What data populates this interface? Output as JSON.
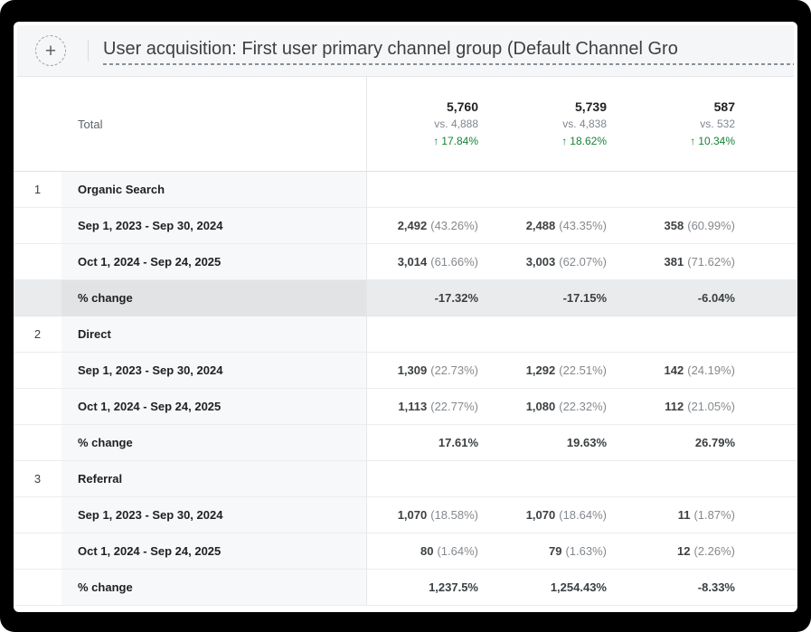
{
  "colors": {
    "positive_green": "#188038",
    "highlight_row": "#e9ebec",
    "label_column_bg": "#f7f8f9"
  },
  "header": {
    "add_button_label": "+",
    "title": "User acquisition: First user primary channel group (Default Channel Gro"
  },
  "table": {
    "total_row": {
      "label": "Total",
      "metrics": [
        {
          "value": "5,760",
          "vs": "vs. 4,888",
          "arrow": "↑",
          "change": "17.84%"
        },
        {
          "value": "5,739",
          "vs": "vs. 4,838",
          "arrow": "↑",
          "change": "18.62%"
        },
        {
          "value": "587",
          "vs": "vs. 532",
          "arrow": "↑",
          "change": "10.34%"
        }
      ]
    },
    "sections": [
      {
        "index": "1",
        "channel": "Organic Search",
        "rows": [
          {
            "label": "Sep 1, 2023 - Sep 30, 2024",
            "values": [
              "2,492",
              "2,488",
              "358"
            ],
            "shares": [
              "(43.26%)",
              "(43.35%)",
              "(60.99%)"
            ]
          },
          {
            "label": "Oct 1, 2024 - Sep 24, 2025",
            "values": [
              "3,014",
              "3,003",
              "381"
            ],
            "shares": [
              "(61.66%)",
              "(62.07%)",
              "(71.62%)"
            ]
          },
          {
            "label": "% change",
            "values": [
              "-17.32%",
              "-17.15%",
              "-6.04%"
            ]
          }
        ]
      },
      {
        "index": "2",
        "channel": "Direct",
        "rows": [
          {
            "label": "Sep 1, 2023 - Sep 30, 2024",
            "values": [
              "1,309",
              "1,292",
              "142"
            ],
            "shares": [
              "(22.73%)",
              "(22.51%)",
              "(24.19%)"
            ]
          },
          {
            "label": "Oct 1, 2024 - Sep 24, 2025",
            "values": [
              "1,113",
              "1,080",
              "112"
            ],
            "shares": [
              "(22.77%)",
              "(22.32%)",
              "(21.05%)"
            ]
          },
          {
            "label": "% change",
            "values": [
              "17.61%",
              "19.63%",
              "26.79%"
            ]
          }
        ]
      },
      {
        "index": "3",
        "channel": "Referral",
        "rows": [
          {
            "label": "Sep 1, 2023 - Sep 30, 2024",
            "values": [
              "1,070",
              "1,070",
              "11"
            ],
            "shares": [
              "(18.58%)",
              "(18.64%)",
              "(1.87%)"
            ]
          },
          {
            "label": "Oct 1, 2024 - Sep 24, 2025",
            "values": [
              "80",
              "79",
              "12"
            ],
            "shares": [
              "(1.64%)",
              "(1.63%)",
              "(2.26%)"
            ]
          },
          {
            "label": "% change",
            "values": [
              "1,237.5%",
              "1,254.43%",
              "-8.33%"
            ]
          }
        ]
      }
    ]
  }
}
